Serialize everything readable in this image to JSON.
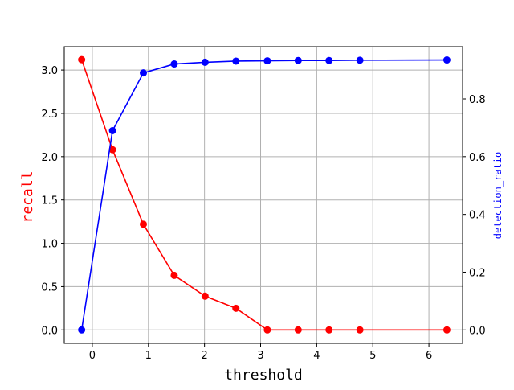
{
  "chart_data": {
    "type": "line",
    "title": "",
    "xlabel": "threshold",
    "ylabel_left": "recall",
    "ylabel_right": "detection_ratio",
    "xlim": [
      -0.5,
      6.6
    ],
    "ylim_left": [
      -0.155,
      3.27
    ],
    "ylim_right": [
      -0.0465,
      0.981
    ],
    "x_ticks": [
      0,
      1,
      2,
      3,
      4,
      5,
      6
    ],
    "y_ticks_left": [
      0.0,
      0.5,
      1.0,
      1.5,
      2.0,
      2.5,
      3.0
    ],
    "y_ticks_right": [
      0.0,
      0.2,
      0.4,
      0.6,
      0.8
    ],
    "grid": true,
    "x": [
      -0.19,
      0.36,
      0.91,
      1.46,
      2.01,
      2.56,
      3.12,
      3.67,
      4.22,
      4.77,
      6.32
    ],
    "series": [
      {
        "name": "recall",
        "axis": "left",
        "color": "#ff0000",
        "values": [
          3.12,
          2.08,
          1.22,
          0.63,
          0.39,
          0.25,
          0.0,
          0.0,
          0.0,
          0.0,
          0.0
        ]
      },
      {
        "name": "detection_ratio",
        "axis": "right",
        "color": "#0000ff",
        "values": [
          0.0,
          0.69,
          0.89,
          0.921,
          0.927,
          0.931,
          0.932,
          0.933,
          0.933,
          0.934,
          0.935
        ]
      }
    ]
  }
}
